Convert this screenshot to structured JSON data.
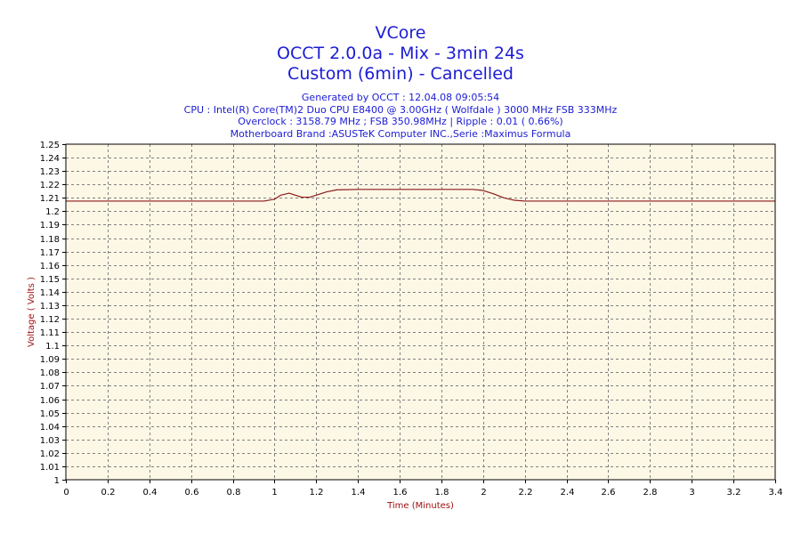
{
  "header": {
    "title": "VCore",
    "subtitle1": "OCCT 2.0.0a - Mix - 3min 24s",
    "subtitle2": "Custom (6min) - Cancelled"
  },
  "info": {
    "generated": "Generated by OCCT : 12.04.08 09:05:54",
    "cpu": "CPU : Intel(R) Core(TM)2 Duo CPU E8400 @ 3.00GHz ( Wolfdale ) 3000 MHz FSB 333MHz",
    "overclock": "Overclock : 3158.79 MHz ; FSB 350.98MHz | Ripple : 0.01 ( 0.66%)",
    "motherboard": "Motherboard Brand :ASUSTeK Computer INC.,Serie :Maximus Formula"
  },
  "colors": {
    "plot_background": "#fdf8e6",
    "line": "#8b1a1a",
    "grid": "#808080",
    "axis_title": "#a01010",
    "title": "#1c1cd4"
  },
  "chart_data": {
    "type": "line",
    "xlabel": "Time (Minutes)",
    "ylabel": "Voltage ( Volts )",
    "xlim": [
      0,
      3.4
    ],
    "ylim": [
      1.0,
      1.25
    ],
    "grid": true,
    "x_ticks": [
      0,
      0.2,
      0.4,
      0.6,
      0.8,
      1,
      1.2,
      1.4,
      1.6,
      1.8,
      2,
      2.2,
      2.4,
      2.6,
      2.8,
      3,
      3.2,
      3.4
    ],
    "y_ticks": [
      1,
      1.01,
      1.02,
      1.03,
      1.04,
      1.05,
      1.06,
      1.07,
      1.08,
      1.09,
      1.1,
      1.11,
      1.12,
      1.13,
      1.14,
      1.15,
      1.16,
      1.17,
      1.18,
      1.19,
      1.2,
      1.21,
      1.22,
      1.23,
      1.24,
      1.25
    ],
    "series": [
      {
        "x": [
          0,
          0.95,
          1.0,
          1.03,
          1.07,
          1.1,
          1.13,
          1.17,
          1.2,
          1.25,
          1.3,
          1.4,
          1.6,
          1.8,
          1.95,
          2.0,
          2.05,
          2.1,
          2.15,
          2.2,
          2.5,
          3.0,
          3.4
        ],
        "y": [
          1.2076,
          1.2076,
          1.209,
          1.212,
          1.2135,
          1.212,
          1.2105,
          1.2105,
          1.212,
          1.2145,
          1.216,
          1.2163,
          1.2163,
          1.2163,
          1.2163,
          1.2155,
          1.213,
          1.21,
          1.2082,
          1.2076,
          1.2076,
          1.2076,
          1.2076
        ]
      }
    ]
  }
}
